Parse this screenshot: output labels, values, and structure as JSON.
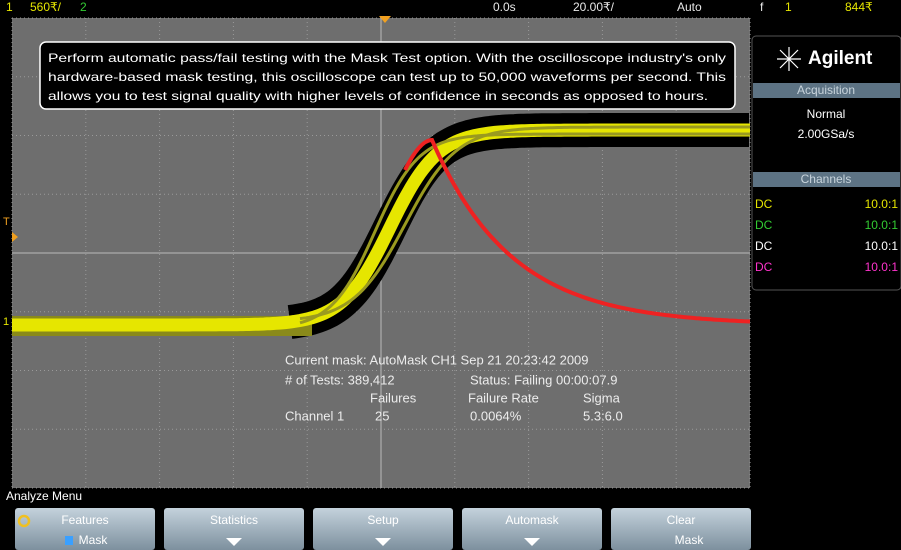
{
  "top_bar": {
    "channel1": "1",
    "ch1_scale": "560₹/",
    "channel2": "2",
    "time_offset": "0.0s",
    "time_scale": "20.00₹/",
    "trigger_mode": "Auto",
    "trigger_symbol": "f",
    "trigger_channel": "1",
    "trigger_level": "844₹"
  },
  "info_box": {
    "lines": [
      "Perform automatic pass/fail testing with the Mask Test option. With the oscilloscope industry's only",
      "hardware-based mask testing, this oscilloscope can test up to 50,000 waveforms per second. This",
      "allows you to test signal quality with higher levels of confidence in seconds as opposed to hours."
    ]
  },
  "side_panel": {
    "brand": "Agilent",
    "acquisition": {
      "title": "Acquisition",
      "mode": "Normal",
      "rate": "2.00GSa/s"
    },
    "channels": {
      "title": "Channels",
      "rows": [
        {
          "coupling": "DC",
          "ratio": "10.0:1",
          "color": "#e6e600"
        },
        {
          "coupling": "DC",
          "ratio": "10.0:1",
          "color": "#33cc33"
        },
        {
          "coupling": "DC",
          "ratio": "10.0:1",
          "color": "#ffffff"
        },
        {
          "coupling": "DC",
          "ratio": "10.0:1",
          "color": "#ff33cc"
        }
      ]
    }
  },
  "markers": {
    "trigger": "T",
    "ground": "1"
  },
  "mask_status": {
    "current_mask": "Current mask: AutoMask CH1 Sep 21 20:23:42 2009",
    "tests": "# of Tests: 389,412",
    "status": "Status: Failing 00:00:07.9",
    "headers": [
      "Failures",
      "Failure Rate",
      "Sigma"
    ],
    "row": [
      "Channel 1",
      "25",
      "0.0064%",
      "5.3:6.0"
    ]
  },
  "menu": {
    "title": "Analyze Menu",
    "softkeys": [
      {
        "label": "Features",
        "sub": "Mask"
      },
      {
        "label": "Statistics"
      },
      {
        "label": "Setup"
      },
      {
        "label": "Automask"
      },
      {
        "label": "Clear",
        "sub": "Mask"
      }
    ]
  }
}
